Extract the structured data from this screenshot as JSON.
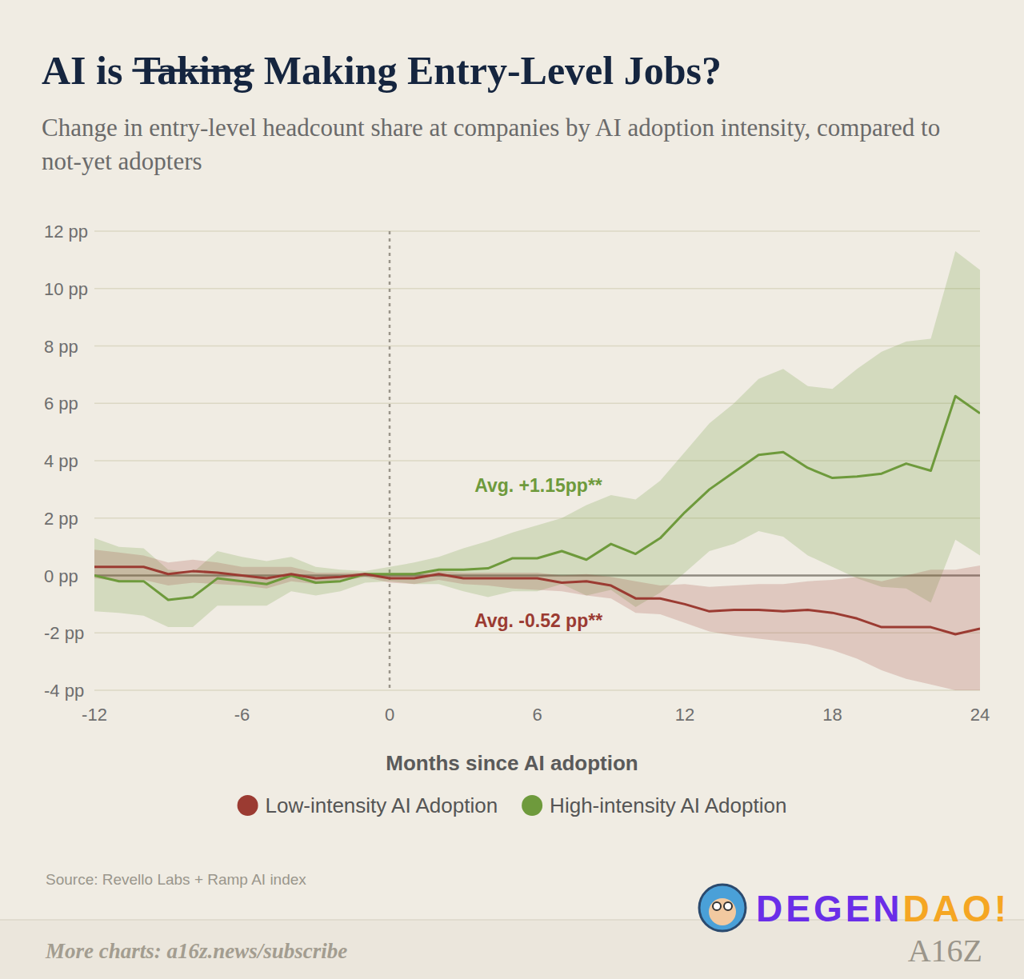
{
  "chart_data": {
    "type": "line",
    "title": {
      "before": "AI is",
      "struck": "Taking",
      "after": "Making Entry-Level Jobs?"
    },
    "subtitle": "Change in entry-level headcount share at companies by AI adoption intensity, compared to not-yet adopters",
    "x_label": "Months since AI adoption",
    "x": [
      -12,
      -11,
      -10,
      -9,
      -8,
      -7,
      -6,
      -5,
      -4,
      -3,
      -2,
      -1,
      0,
      1,
      2,
      3,
      4,
      5,
      6,
      7,
      8,
      9,
      10,
      11,
      12,
      13,
      14,
      15,
      16,
      17,
      18,
      19,
      20,
      21,
      22,
      23,
      24
    ],
    "series": [
      {
        "name": "Low-intensity AI Adoption",
        "color": "#9b3b32",
        "values": [
          0.3,
          0.3,
          0.3,
          0.05,
          0.15,
          0.1,
          0,
          -0.1,
          0.05,
          -0.1,
          -0.05,
          0.05,
          -0.1,
          -0.1,
          0.05,
          -0.1,
          -0.1,
          -0.1,
          -0.1,
          -0.25,
          -0.2,
          -0.35,
          -0.8,
          -0.8,
          -1.0,
          -1.25,
          -1.2,
          -1.2,
          -1.25,
          -1.2,
          -1.3,
          -1.5,
          -1.8,
          -1.8,
          -1.8,
          -2.05,
          -1.85
        ],
        "upper": [
          0.9,
          0.8,
          0.7,
          0.45,
          0.55,
          0.45,
          0.3,
          0.3,
          0.3,
          0.1,
          0.1,
          0.1,
          0.05,
          0.1,
          0.15,
          0.1,
          0.1,
          0.1,
          0.1,
          0.0,
          0.05,
          -0.05,
          -0.2,
          -0.35,
          -0.3,
          -0.4,
          -0.35,
          -0.3,
          -0.3,
          -0.2,
          -0.15,
          -0.05,
          -0.2,
          0,
          0.2,
          0.2,
          0.35
        ],
        "lower": [
          -0.1,
          -0.2,
          -0.15,
          -0.35,
          -0.25,
          -0.3,
          -0.35,
          -0.45,
          -0.2,
          -0.3,
          -0.2,
          -0.05,
          -0.25,
          -0.3,
          -0.15,
          -0.3,
          -0.35,
          -0.45,
          -0.5,
          -0.55,
          -0.7,
          -0.8,
          -1.3,
          -1.35,
          -1.65,
          -1.95,
          -2.1,
          -2.2,
          -2.3,
          -2.4,
          -2.6,
          -2.9,
          -3.3,
          -3.6,
          -3.8,
          -4.0,
          -4.0
        ]
      },
      {
        "name": "High-intensity AI Adoption",
        "color": "#6e9a3c",
        "values": [
          0,
          -0.2,
          -0.2,
          -0.85,
          -0.75,
          -0.1,
          -0.2,
          -0.3,
          0,
          -0.25,
          -0.2,
          0.05,
          0.05,
          0.05,
          0.2,
          0.2,
          0.25,
          0.6,
          0.6,
          0.85,
          0.55,
          1.1,
          0.75,
          1.3,
          2.2,
          3.0,
          3.6,
          4.2,
          4.3,
          3.75,
          3.4,
          3.45,
          3.55,
          3.9,
          3.65,
          6.25,
          5.65
        ],
        "upper": [
          1.3,
          1.0,
          0.95,
          0.2,
          0.1,
          0.85,
          0.65,
          0.5,
          0.65,
          0.3,
          0.2,
          0.15,
          0.3,
          0.45,
          0.65,
          0.95,
          1.2,
          1.5,
          1.75,
          2.0,
          2.45,
          2.8,
          2.65,
          3.3,
          4.3,
          5.3,
          6.0,
          6.85,
          7.2,
          6.6,
          6.5,
          7.2,
          7.8,
          8.15,
          8.25,
          11.3,
          10.65
        ],
        "lower": [
          -1.25,
          -1.3,
          -1.4,
          -1.8,
          -1.8,
          -1.05,
          -1.05,
          -1.05,
          -0.55,
          -0.7,
          -0.55,
          -0.25,
          -0.2,
          -0.3,
          -0.3,
          -0.55,
          -0.75,
          -0.55,
          -0.55,
          -0.3,
          -0.7,
          -0.5,
          -1.1,
          -0.6,
          0.1,
          0.85,
          1.1,
          1.55,
          1.35,
          0.7,
          0.3,
          -0.1,
          -0.4,
          -0.45,
          -0.95,
          1.25,
          0.7
        ]
      }
    ],
    "annotations": [
      {
        "text": "Avg. +1.15pp**",
        "x": 6.05,
        "y": 3.13,
        "color": "#6e9a3c"
      },
      {
        "text": "Avg. -0.52 pp**",
        "x": 6.05,
        "y": -1.58,
        "color": "#9b3b32"
      }
    ],
    "event_x": 0,
    "xlim": [
      -12,
      24
    ],
    "xticks": [
      -12,
      -6,
      0,
      6,
      12,
      18,
      24
    ],
    "ylim": [
      -4,
      12
    ],
    "yticks": [
      {
        "value": -4,
        "label": "-4 pp"
      },
      {
        "value": -2,
        "label": "-2 pp"
      },
      {
        "value": 0,
        "label": "0 pp"
      },
      {
        "value": 2,
        "label": "2 pp"
      },
      {
        "value": 4,
        "label": "4 pp"
      },
      {
        "value": 6,
        "label": "6 pp"
      },
      {
        "value": 8,
        "label": "8 pp"
      },
      {
        "value": 10,
        "label": "10 pp"
      },
      {
        "value": 12,
        "label": "12 pp"
      }
    ],
    "grid": true,
    "legend": "bottom",
    "source": "Source: Revello Labs + Ramp AI index",
    "footer": "More charts: a16z.news/subscribe",
    "logo": [
      "DEGEN",
      "DAO!"
    ],
    "brand": "A16Z"
  }
}
